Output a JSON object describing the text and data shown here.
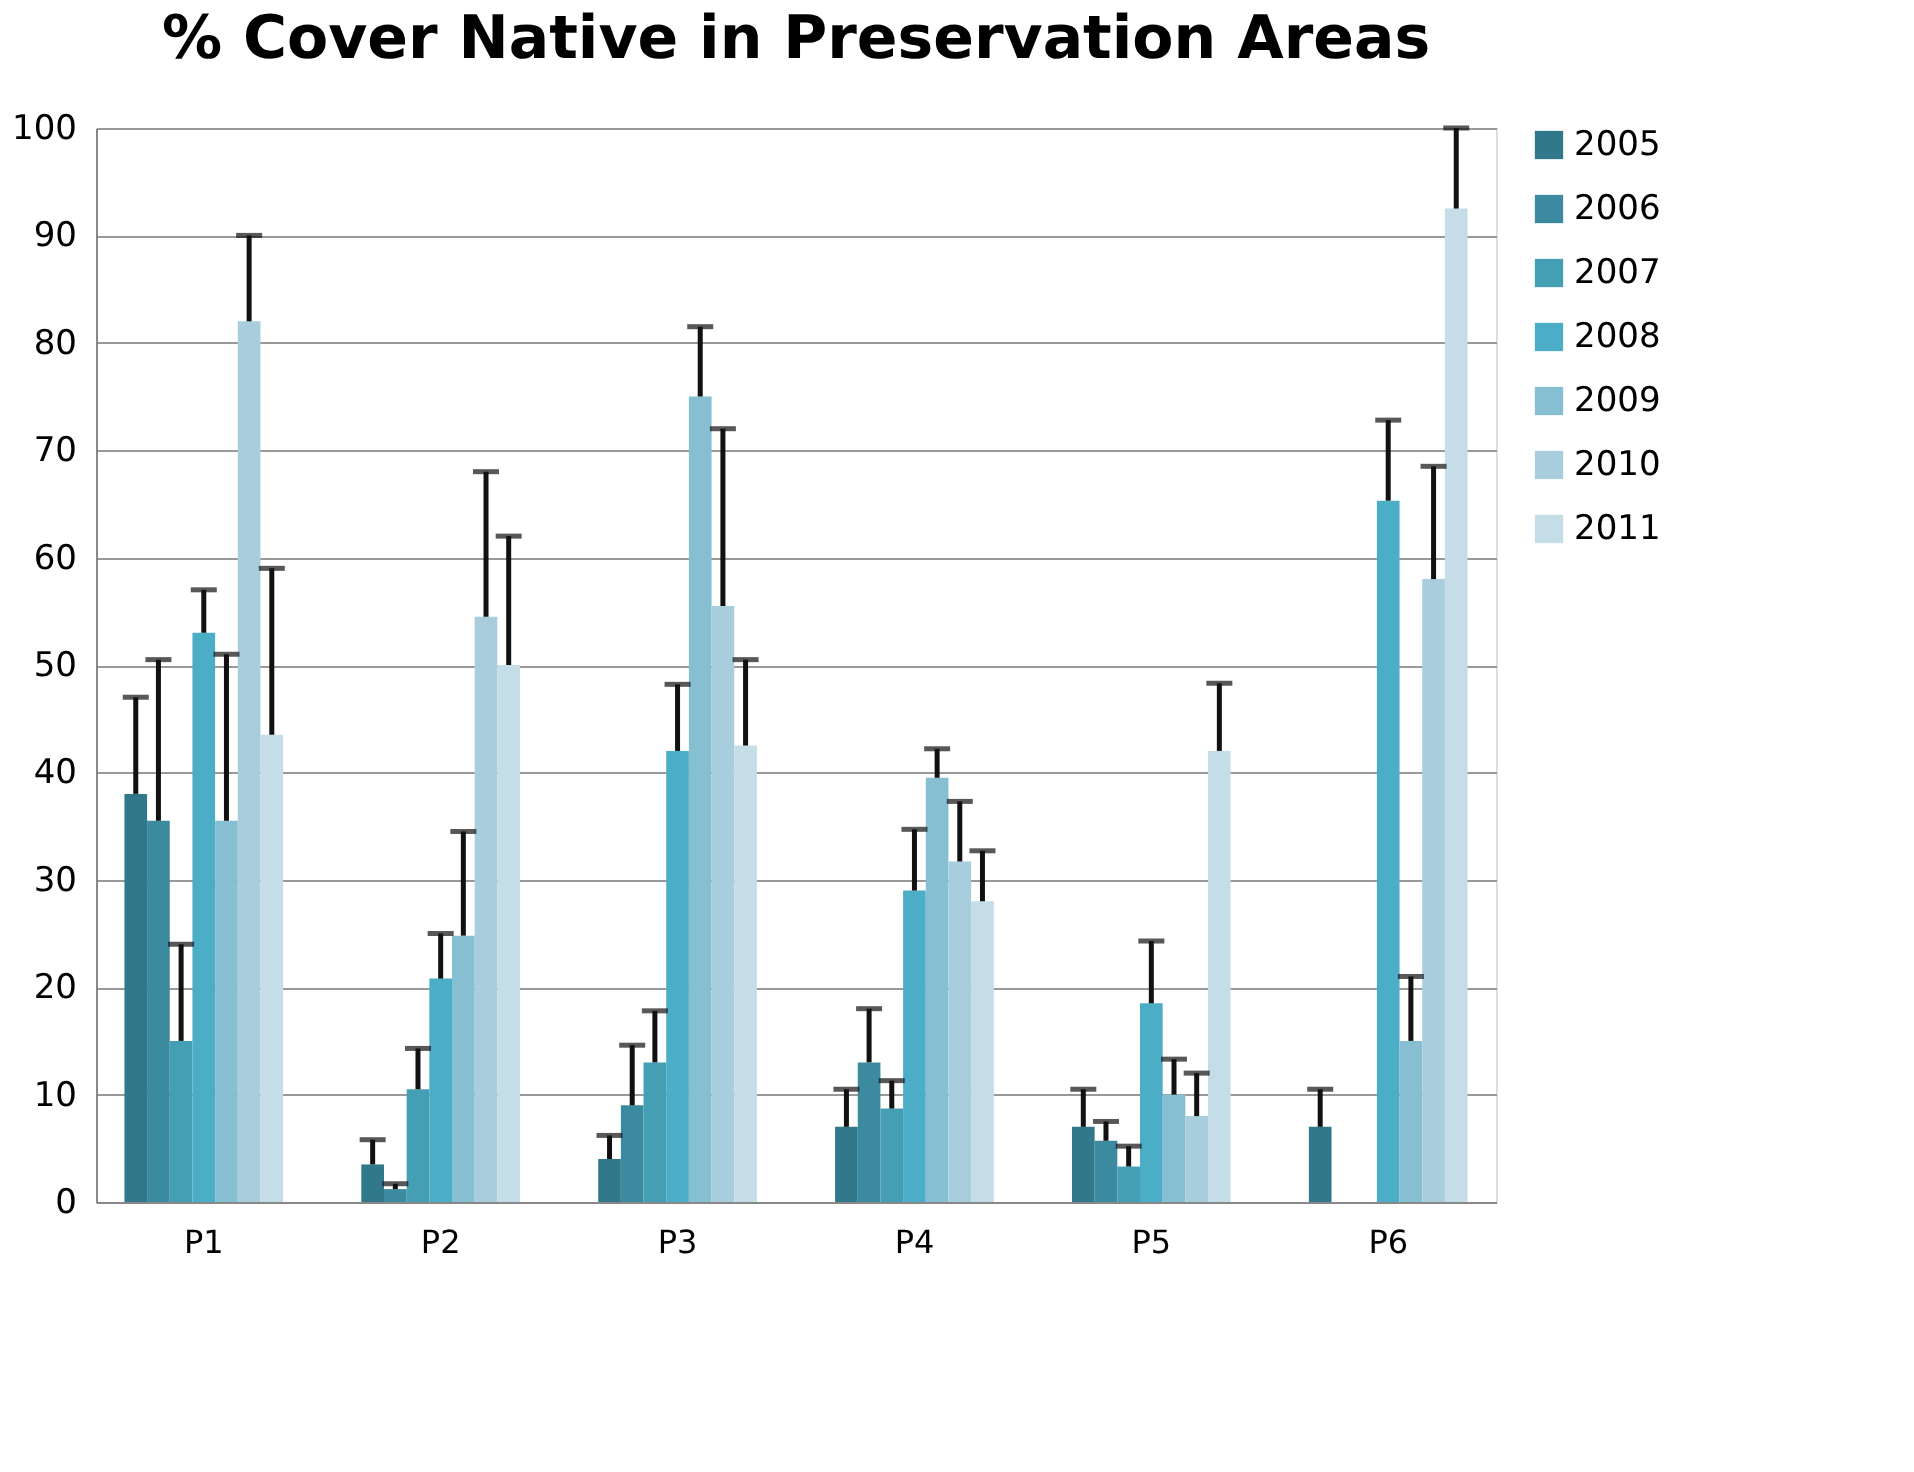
{
  "chart_data": {
    "type": "bar",
    "title": "% Cover Native in Preservation Areas",
    "categories": [
      "P1",
      "P2",
      "P3",
      "P4",
      "P5",
      "P6"
    ],
    "ylim": [
      0,
      100
    ],
    "yticks": [
      0,
      10,
      20,
      30,
      40,
      50,
      60,
      70,
      80,
      90,
      100
    ],
    "grid": "y",
    "legend": "right",
    "series": [
      {
        "name": "2005",
        "color": "#31798a",
        "values": [
          38,
          3.5,
          4,
          7,
          7,
          7
        ],
        "errors": [
          [
            38,
            47
          ],
          [
            3.5,
            5.8
          ],
          [
            4,
            6.2
          ],
          [
            7,
            10.5
          ],
          [
            7,
            10.5
          ],
          [
            7,
            10.5
          ]
        ]
      },
      {
        "name": "2006",
        "color": "#3b8aa0",
        "values": [
          35.5,
          1.2,
          9,
          13,
          5.7,
          null
        ],
        "errors": [
          [
            35.5,
            50.5
          ],
          [
            1.2,
            1.7
          ],
          [
            9,
            14.6
          ],
          [
            13,
            18
          ],
          [
            5.7,
            7.5
          ],
          null
        ]
      },
      {
        "name": "2007",
        "color": "#449fb5",
        "values": [
          15,
          10.5,
          13,
          8.7,
          3.3,
          null
        ],
        "errors": [
          [
            15,
            24
          ],
          [
            10.5,
            14.3
          ],
          [
            13,
            17.8
          ],
          [
            8.7,
            11.3
          ],
          [
            3.3,
            5.2
          ],
          null
        ]
      },
      {
        "name": "2008",
        "color": "#4badc6",
        "values": [
          53,
          20.8,
          42,
          29,
          18.5,
          65.3
        ],
        "errors": [
          [
            53,
            57
          ],
          [
            20.8,
            25
          ],
          [
            42,
            48.2
          ],
          [
            29,
            34.7
          ],
          [
            18.5,
            24.3
          ],
          [
            65.3,
            72.8
          ]
        ]
      },
      {
        "name": "2009",
        "color": "#86bfd2",
        "values": [
          35.5,
          24.8,
          75,
          39.5,
          10,
          15
        ],
        "errors": [
          [
            35.5,
            51
          ],
          [
            24.8,
            34.5
          ],
          [
            75,
            81.5
          ],
          [
            39.5,
            42.2
          ],
          [
            10,
            13.3
          ],
          [
            15,
            21
          ]
        ]
      },
      {
        "name": "2010",
        "color": "#a8cede",
        "values": [
          82,
          54.5,
          55.5,
          31.7,
          8,
          58
        ],
        "errors": [
          [
            82,
            90
          ],
          [
            54.5,
            68
          ],
          [
            55.5,
            72
          ],
          [
            31.7,
            37.3
          ],
          [
            8,
            12
          ],
          [
            58,
            68.5
          ]
        ]
      },
      {
        "name": "2011",
        "color": "#c5dde6",
        "values": [
          43.5,
          50,
          42.5,
          28,
          42,
          92.5
        ],
        "errors": [
          [
            43.5,
            59
          ],
          [
            50,
            62
          ],
          [
            42.5,
            50.5
          ],
          [
            28,
            32.7
          ],
          [
            42,
            48.3
          ],
          [
            92.5,
            100
          ]
        ]
      }
    ]
  }
}
